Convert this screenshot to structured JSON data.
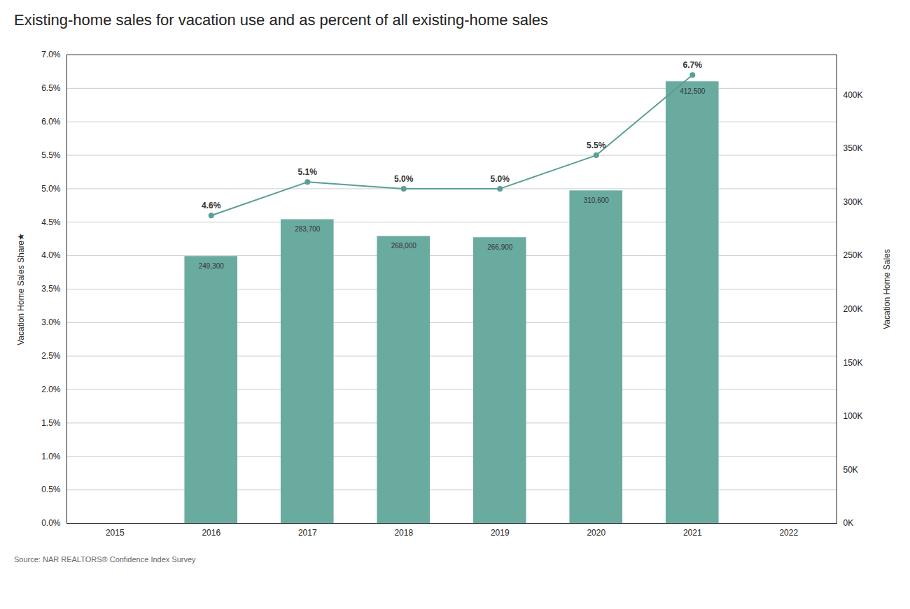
{
  "chart_data": {
    "type": "bar",
    "title": "Existing-home sales for vacation use and as percent of all existing-home sales",
    "source": "Source: NAR REALTORS® Confidence Index Survey",
    "ylabel": "Vacation Home Sales Share★",
    "y2label": "Vacation Home Sales",
    "x": [
      2016,
      2017,
      2018,
      2019,
      2020,
      2021
    ],
    "xlim": [
      2014.5,
      2022.5
    ],
    "xticks": [
      2015,
      2016,
      2017,
      2018,
      2019,
      2020,
      2021,
      2022
    ],
    "ylim": [
      0.0,
      7.0
    ],
    "yticks": [
      {
        "value": 0.0,
        "label": "0.0%"
      },
      {
        "value": 0.5,
        "label": "0.5%"
      },
      {
        "value": 1.0,
        "label": "1.0%"
      },
      {
        "value": 1.5,
        "label": "1.5%"
      },
      {
        "value": 2.0,
        "label": "2.0%"
      },
      {
        "value": 2.5,
        "label": "2.5%"
      },
      {
        "value": 3.0,
        "label": "3.0%"
      },
      {
        "value": 3.5,
        "label": "3.5%"
      },
      {
        "value": 4.0,
        "label": "4.0%"
      },
      {
        "value": 4.5,
        "label": "4.5%"
      },
      {
        "value": 5.0,
        "label": "5.0%"
      },
      {
        "value": 5.5,
        "label": "5.5%"
      },
      {
        "value": 6.0,
        "label": "6.0%"
      },
      {
        "value": 6.5,
        "label": "6.5%"
      },
      {
        "value": 7.0,
        "label": "7.0%"
      }
    ],
    "y2lim": [
      0,
      437500
    ],
    "y2ticks": [
      {
        "value": 0,
        "label": "0K"
      },
      {
        "value": 50000,
        "label": "50K"
      },
      {
        "value": 100000,
        "label": "100K"
      },
      {
        "value": 150000,
        "label": "150K"
      },
      {
        "value": 200000,
        "label": "200K"
      },
      {
        "value": 250000,
        "label": "250K"
      },
      {
        "value": 300000,
        "label": "300K"
      },
      {
        "value": 350000,
        "label": "350K"
      },
      {
        "value": 400000,
        "label": "400K"
      }
    ],
    "grid": true,
    "data_labels": true,
    "series": [
      {
        "type": "bar",
        "axis": "y2",
        "color": "#6aaba0",
        "values": [
          249300,
          283700,
          268000,
          266900,
          310600,
          412500
        ],
        "value_labels": [
          "249,300",
          "283,700",
          "268,000",
          "266,900",
          "310,600",
          "412,500"
        ]
      },
      {
        "type": "line",
        "color": "#5a9e96",
        "marker": "circle",
        "values": [
          4.6,
          5.1,
          5.0,
          5.0,
          5.5,
          6.7
        ],
        "value_labels": [
          "4.6%",
          "5.1%",
          "5.0%",
          "5.0%",
          "5.5%",
          "6.7%"
        ]
      }
    ]
  }
}
